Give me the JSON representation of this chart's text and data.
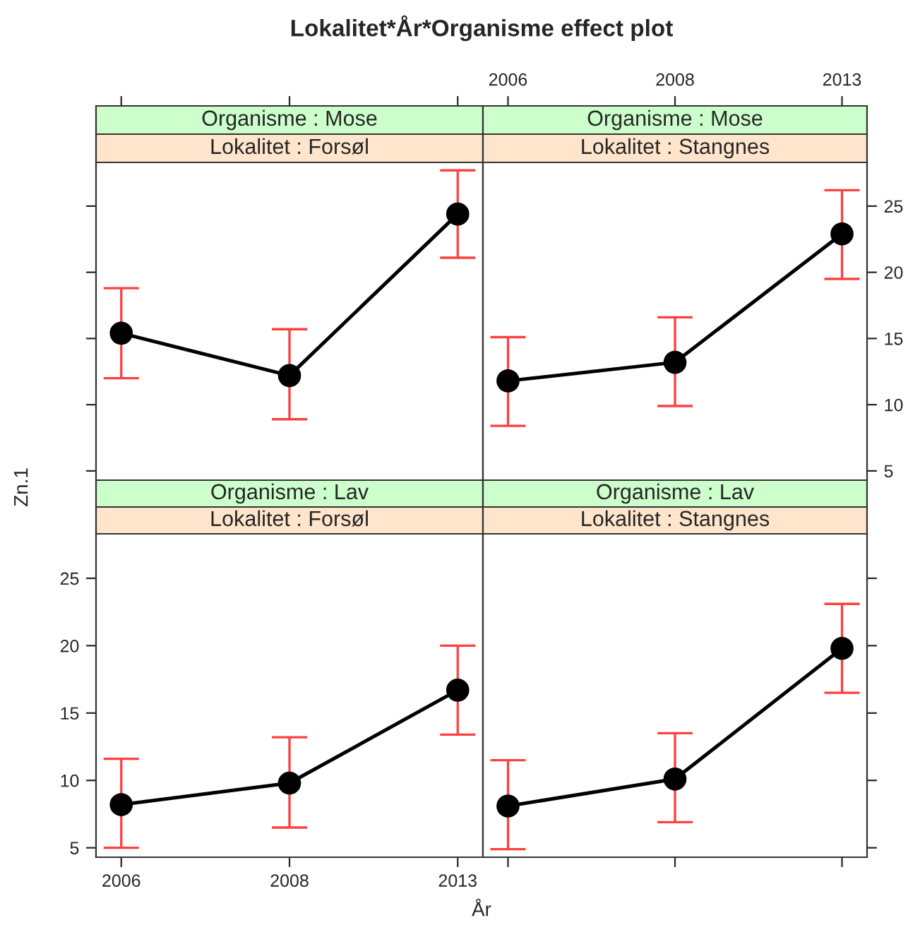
{
  "chart_data": [
    {
      "type": "line",
      "title": "Lokalitet*År*Organisme effect plot",
      "annotations": [
        "Organisme : Mose",
        "Lokalitet : Forsøl"
      ],
      "categories": [
        "2006",
        "2008",
        "2013"
      ],
      "ylim": [
        4.3,
        28.3
      ],
      "yticks": [
        5,
        10,
        15,
        20,
        25
      ],
      "tick_labels": false,
      "marker": "circle",
      "line_style": "solid",
      "grid": false,
      "legend": false,
      "series": [
        {
          "color": "#000000",
          "values": [
            15.4,
            12.2,
            24.4
          ],
          "errors": [
            [
              12.0,
              18.8
            ],
            [
              8.9,
              15.7
            ],
            [
              21.1,
              27.7
            ]
          ]
        }
      ]
    },
    {
      "type": "line",
      "xlabel": "År",
      "ylabel": "Zn.1",
      "annotations": [
        "Organisme : Lav",
        "Lokalitet : Forsøl"
      ],
      "categories": [
        "2006",
        "2008",
        "2013"
      ],
      "ylim": [
        4.3,
        28.3
      ],
      "yticks": [
        5,
        10,
        15,
        20,
        25
      ],
      "marker": "circle",
      "line_style": "solid",
      "grid": false,
      "legend": false,
      "series": [
        {
          "color": "#000000",
          "values": [
            8.2,
            9.8,
            16.7
          ],
          "errors": [
            [
              5.0,
              11.6
            ],
            [
              6.5,
              13.2
            ],
            [
              13.4,
              20.0
            ]
          ]
        }
      ]
    },
    {
      "type": "line",
      "annotations": [
        "Organisme : Mose",
        "Lokalitet : Stangnes"
      ],
      "categories": [
        "2006",
        "2008",
        "2013"
      ],
      "ylim": [
        4.3,
        28.3
      ],
      "yticks": [
        5,
        10,
        15,
        20,
        25
      ],
      "marker": "circle",
      "line_style": "solid",
      "grid": false,
      "legend": false,
      "series": [
        {
          "color": "#000000",
          "values": [
            11.8,
            13.2,
            22.9
          ],
          "errors": [
            [
              8.4,
              15.1
            ],
            [
              9.9,
              16.6
            ],
            [
              19.5,
              26.2
            ]
          ]
        }
      ]
    },
    {
      "type": "line",
      "annotations": [
        "Organisme : Lav",
        "Lokalitet : Stangnes"
      ],
      "categories": [
        "2006",
        "2008",
        "2013"
      ],
      "ylim": [
        4.3,
        28.3
      ],
      "yticks": [
        5,
        10,
        15,
        20,
        25
      ],
      "tick_labels": false,
      "marker": "circle",
      "line_style": "solid",
      "grid": false,
      "legend": false,
      "series": [
        {
          "color": "#000000",
          "values": [
            8.1,
            10.1,
            19.8
          ],
          "errors": [
            [
              4.9,
              11.5
            ],
            [
              6.9,
              13.5
            ],
            [
              16.5,
              23.1
            ]
          ]
        }
      ]
    }
  ]
}
